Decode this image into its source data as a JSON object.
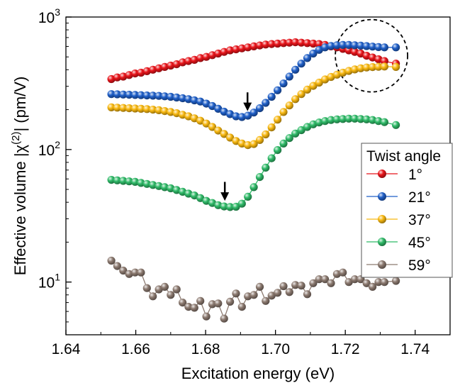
{
  "chart_data": {
    "type": "scatter",
    "title": "",
    "xlabel": "Excitation energy (eV)",
    "ylabel": "Effective volume |χ(2)| (pm/V)",
    "ylabel_parts": {
      "pre": "Effective volume |",
      "chi": "χ",
      "sup": "(2)",
      "post": "| (pm/V)"
    },
    "xlim": [
      1.64,
      1.75
    ],
    "ylim": [
      4,
      1000
    ],
    "yscale": "log",
    "xticks": [
      1.64,
      1.66,
      1.68,
      1.7,
      1.72,
      1.74
    ],
    "xtick_labels": [
      "1.64",
      "1.66",
      "1.68",
      "1.70",
      "1.72",
      "1.74"
    ],
    "yticks": [
      10,
      100,
      1000
    ],
    "ytick_labels": [
      {
        "base": "10",
        "exp": "1"
      },
      {
        "base": "10",
        "exp": "2"
      },
      {
        "base": "10",
        "exp": "3"
      }
    ],
    "legend": {
      "title": "Twist angle",
      "position": "right"
    },
    "annotations": [
      {
        "type": "arrow",
        "x": 1.692,
        "y_from": 270,
        "y_to": 195
      },
      {
        "type": "arrow",
        "x": 1.6855,
        "y_from": 57,
        "y_to": 41
      },
      {
        "type": "dashed-circle",
        "x": 1.7275,
        "y": 510
      }
    ],
    "x": [
      1.653,
      1.6547,
      1.6564,
      1.6581,
      1.6598,
      1.6615,
      1.6632,
      1.6649,
      1.6666,
      1.6683,
      1.67,
      1.6717,
      1.6734,
      1.6751,
      1.6768,
      1.6785,
      1.6802,
      1.6819,
      1.6836,
      1.6853,
      1.687,
      1.6887,
      1.6904,
      1.6921,
      1.6938,
      1.6955,
      1.6972,
      1.6989,
      1.7006,
      1.7023,
      1.704,
      1.7057,
      1.7074,
      1.7091,
      1.7108,
      1.7125,
      1.7142,
      1.7159,
      1.7176,
      1.7193,
      1.721,
      1.7227,
      1.7244,
      1.7261,
      1.7278,
      1.7295,
      1.7312,
      1.7345
    ],
    "series": [
      {
        "name": "1°",
        "color": "#e8141a",
        "marker": "sphere",
        "values": [
          340,
          350,
          355,
          365,
          375,
          380,
          390,
          400,
          410,
          420,
          430,
          440,
          455,
          465,
          475,
          490,
          500,
          515,
          530,
          545,
          560,
          570,
          580,
          590,
          600,
          610,
          620,
          625,
          630,
          635,
          640,
          645,
          640,
          635,
          630,
          625,
          615,
          600,
          590,
          575,
          560,
          545,
          530,
          510,
          495,
          480,
          465,
          445
        ]
      },
      {
        "name": "21°",
        "color": "#1f5fc8",
        "marker": "sphere",
        "values": [
          262,
          261,
          260,
          259,
          258,
          257,
          256,
          255,
          254,
          252,
          250,
          247,
          244,
          240,
          235,
          230,
          222,
          213,
          203,
          193,
          185,
          178,
          176,
          180,
          190,
          205,
          225,
          250,
          280,
          315,
          355,
          400,
          445,
          490,
          530,
          565,
          590,
          605,
          612,
          615,
          615,
          612,
          608,
          603,
          598,
          593,
          590,
          590
        ]
      },
      {
        "name": "37°",
        "color": "#f8b810",
        "marker": "sphere",
        "values": [
          208,
          207,
          206,
          205,
          204,
          203,
          202,
          200,
          198,
          195,
          192,
          188,
          183,
          178,
          172,
          165,
          157,
          148,
          139,
          131,
          123,
          116,
          111,
          108,
          110,
          118,
          130,
          147,
          168,
          192,
          215,
          240,
          262,
          283,
          302,
          320,
          338,
          353,
          367,
          380,
          392,
          402,
          410,
          416,
          419,
          421,
          423,
          420
        ]
      },
      {
        "name": "45°",
        "color": "#2fba68",
        "marker": "sphere",
        "values": [
          59,
          58.5,
          58,
          57.5,
          57,
          56,
          55,
          54,
          53,
          52,
          51,
          49.5,
          48,
          46.5,
          45,
          43,
          41,
          39.5,
          38,
          37.2,
          36.8,
          37,
          39,
          44,
          52,
          62,
          73,
          86,
          99,
          111,
          122,
          132,
          140,
          148,
          155,
          160,
          164,
          167,
          169,
          170,
          171,
          171,
          170,
          169,
          167,
          164,
          161,
          153
        ]
      },
      {
        "name": "59°",
        "color": "#8c7a70",
        "marker": "sphere",
        "values": [
          14.5,
          13.2,
          12.2,
          11.5,
          11.8,
          11.8,
          9.0,
          7.8,
          8.8,
          9.2,
          8.0,
          8.8,
          7.0,
          6.5,
          6.4,
          7.2,
          5.5,
          6.8,
          6.9,
          5.3,
          7.1,
          8.2,
          6.5,
          7.8,
          8.0,
          9.2,
          7.2,
          7.9,
          8.3,
          9.3,
          8.4,
          9.5,
          9.4,
          8.1,
          9.8,
          10.5,
          10.5,
          9.8,
          11.5,
          11.8,
          10.0,
          10.5,
          10.5,
          9.8,
          9.2,
          10.0,
          10.0,
          10.2
        ]
      }
    ]
  }
}
